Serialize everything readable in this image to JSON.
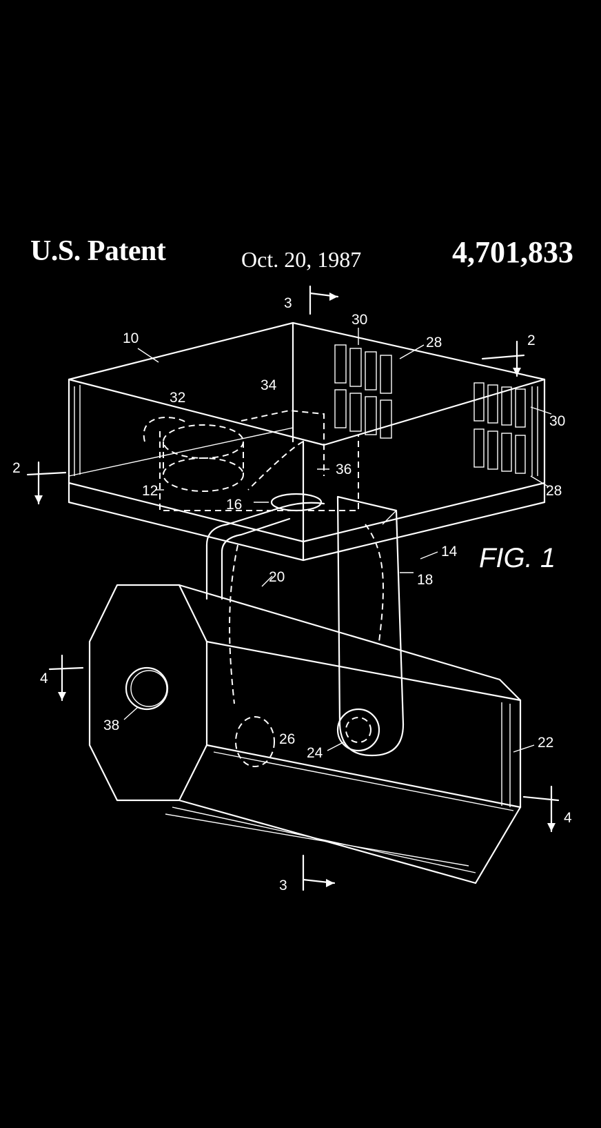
{
  "header": {
    "left": "U.S. Patent",
    "date": "Oct. 20, 1987",
    "number": "4,701,833"
  },
  "figure": {
    "label": "FIG. 1",
    "refs": {
      "r10": "10",
      "r12": "12",
      "r14": "14",
      "r16": "16",
      "r18": "18",
      "r20": "20",
      "r22": "22",
      "r24": "24",
      "r26": "26",
      "r28a": "28",
      "r28b": "28",
      "r30a": "30",
      "r30b": "30",
      "r32": "32",
      "r34": "34",
      "r36": "36",
      "r38": "38",
      "sec2a": "2",
      "sec2b": "2",
      "sec3a": "3",
      "sec3b": "3",
      "sec4a": "4",
      "sec4b": "4"
    }
  },
  "colors": {
    "background": "#000000",
    "ink": "#ffffff"
  }
}
